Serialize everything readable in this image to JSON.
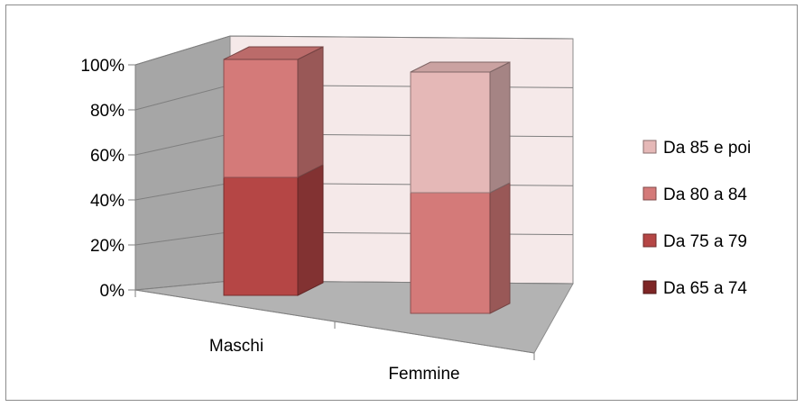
{
  "chart_data": {
    "type": "bar",
    "stacked": true,
    "three_d": true,
    "categories": [
      "Maschi",
      "Femmine"
    ],
    "series": [
      {
        "name": "Da 65 a 74",
        "values": [
          0,
          0
        ],
        "color": "#7e2626"
      },
      {
        "name": "Da 75 a 79",
        "values": [
          50,
          0
        ],
        "color": "#b54645"
      },
      {
        "name": "Da 80 a 84",
        "values": [
          50,
          50
        ],
        "color": "#d47a79"
      },
      {
        "name": "Da 85 e poi",
        "values": [
          0,
          50
        ],
        "color": "#e5b8b7"
      }
    ],
    "y_ticks": [
      "0%",
      "20%",
      "40%",
      "60%",
      "80%",
      "100%"
    ],
    "ylim": [
      0,
      100
    ],
    "grid": true,
    "legend_position": "right",
    "colors": {
      "back_wall": "#f5e9e9",
      "side_wall": "#a6a6a6",
      "floor": "#b3b3b3",
      "gridline": "#7f7f7f"
    }
  }
}
